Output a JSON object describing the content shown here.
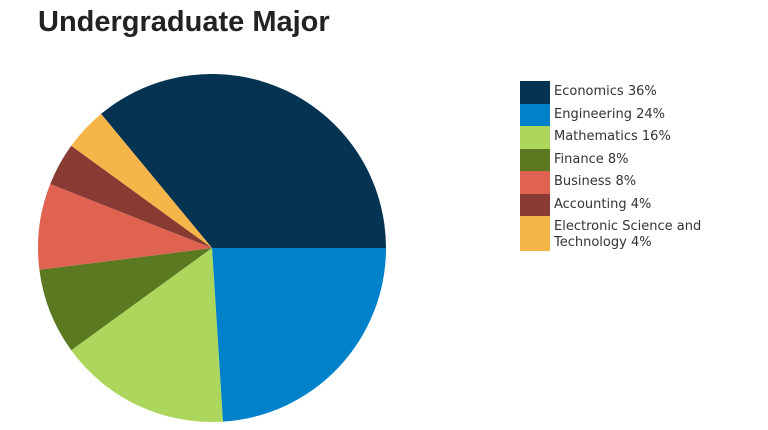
{
  "chart_data": {
    "type": "pie",
    "title": "Undergraduate Major",
    "categories": [
      "Economics 36%",
      "Engineering 24%",
      "Mathematics 16%",
      "Finance 8%",
      "Business 8%",
      "Accounting 4%",
      "Electronic Science and Technology 4%"
    ],
    "values": [
      36,
      24,
      16,
      8,
      8,
      4,
      4
    ],
    "colors": [
      "#053352",
      "#0181ca",
      "#acd75c",
      "#5a7921",
      "#e06352",
      "#883b32",
      "#f6b548"
    ],
    "legend": "right"
  }
}
